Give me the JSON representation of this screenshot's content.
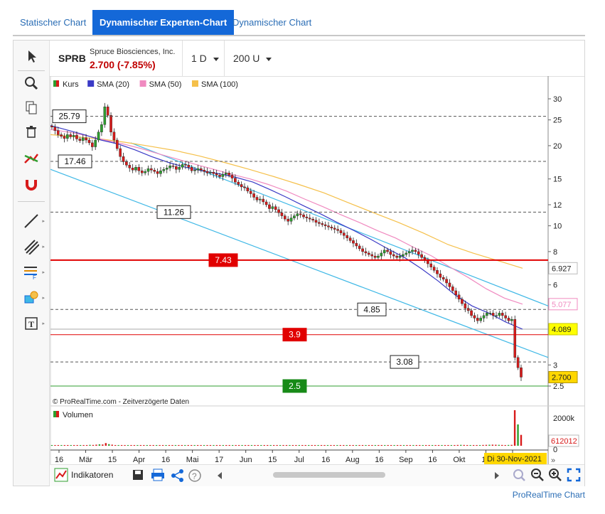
{
  "tabs": [
    "Statischer Chart",
    "Dynamischer Experten-Chart",
    "Dynamischer Chart"
  ],
  "active_tab": 1,
  "header": {
    "symbol": "SPRB",
    "company": "Spruce Biosciences, Inc.",
    "price": "2.700 (-7.85%)",
    "interval": "1 D",
    "units": "200 U"
  },
  "legend": [
    {
      "label": "Kurs",
      "color": "#2e9e2e"
    },
    {
      "label": "SMA (20)",
      "color": "#3b3bc6"
    },
    {
      "label": "SMA (50)",
      "color": "#f08ac0"
    },
    {
      "label": "SMA (100)",
      "color": "#f5c04a"
    }
  ],
  "copyright": "© ProRealTime.com",
  "delayed": "Zeitverzögerte Daten",
  "volume_label": "Volumen",
  "indicators_label": "Indikatoren",
  "brand": "ProRealTime Chart",
  "colors": {
    "accent": "#1468d8",
    "up": "#2e9e2e",
    "down": "#d81b1b",
    "channel": "#3fb8e6",
    "level": "#e10000"
  },
  "chart_data": {
    "type": "line",
    "scale": "log",
    "yticks": [
      "30",
      "25",
      "20",
      "15",
      "12",
      "10",
      "8",
      "6",
      "3",
      "2.5"
    ],
    "ytick_values": [
      30,
      25,
      20,
      15,
      12,
      10,
      8,
      6,
      3,
      2.5
    ],
    "xticks": [
      "16",
      "Mär",
      "15",
      "Apr",
      "16",
      "Mai",
      "17",
      "Jun",
      "15",
      "Jul",
      "16",
      "Aug",
      "16",
      "Sep",
      "16",
      "Okt",
      "15",
      "N"
    ],
    "x_cursor_label": "Di 30-Nov-2021",
    "price_series": [
      23.5,
      22.8,
      22.0,
      21.7,
      21.3,
      22.0,
      21.6,
      21.9,
      21.2,
      20.9,
      21.4,
      21.0,
      20.5,
      19.8,
      21.0,
      22.5,
      24.0,
      28.0,
      26.0,
      22.5,
      21.0,
      19.5,
      18.2,
      17.4,
      16.9,
      16.5,
      16.2,
      16.6,
      16.1,
      15.8,
      16.0,
      16.4,
      16.2,
      16.0,
      15.7,
      16.1,
      16.3,
      16.5,
      16.8,
      16.7,
      16.3,
      16.6,
      17.0,
      16.9,
      16.6,
      16.1,
      16.2,
      16.4,
      16.2,
      16.0,
      15.8,
      15.9,
      15.7,
      15.5,
      15.3,
      15.6,
      15.8,
      15.5,
      15.1,
      14.6,
      14.3,
      14.0,
      13.9,
      13.5,
      13.2,
      12.8,
      12.5,
      12.6,
      12.3,
      12.0,
      11.6,
      11.8,
      11.5,
      11.2,
      10.9,
      10.6,
      10.4,
      10.7,
      10.9,
      11.1,
      11.0,
      10.8,
      10.7,
      10.6,
      10.5,
      10.3,
      10.2,
      10.1,
      10.0,
      9.9,
      9.8,
      9.7,
      9.6,
      9.4,
      9.2,
      9.0,
      8.8,
      8.6,
      8.4,
      8.2,
      8.0,
      7.9,
      7.8,
      7.7,
      7.6,
      7.7,
      7.9,
      8.1,
      8.0,
      7.8,
      7.7,
      7.6,
      7.7,
      7.8,
      7.9,
      8.0,
      8.1,
      8.0,
      7.8,
      7.6,
      7.4,
      7.2,
      7.0,
      6.8,
      6.6,
      6.4,
      6.3,
      6.1,
      5.9,
      5.7,
      5.5,
      5.3,
      5.1,
      4.9,
      4.8,
      4.6,
      4.5,
      4.4,
      4.5,
      4.6,
      4.7,
      4.7,
      4.6,
      4.6,
      4.7,
      4.6,
      4.5,
      4.4,
      4.45,
      3.2,
      2.93,
      2.7
    ],
    "volume_k": [
      40,
      35,
      30,
      30,
      25,
      30,
      20,
      25,
      20,
      30,
      35,
      40,
      50,
      45,
      60,
      80,
      70,
      150,
      90,
      60,
      40,
      35,
      30,
      30,
      28,
      25,
      25,
      30,
      28,
      25,
      25,
      22,
      20,
      22,
      25,
      20,
      18,
      20,
      22,
      25,
      20,
      18,
      20,
      22,
      25,
      20,
      18,
      20,
      22,
      20,
      18,
      20,
      22,
      25,
      30,
      28,
      25,
      30,
      35,
      40,
      38,
      35,
      30,
      28,
      32,
      30,
      28,
      25,
      22,
      20,
      25,
      28,
      30,
      25,
      22,
      20,
      22,
      25,
      28,
      30,
      25,
      22,
      20,
      25,
      22,
      20,
      18,
      20,
      22,
      20,
      18,
      20,
      22,
      25,
      28,
      25,
      22,
      20,
      25,
      28,
      30,
      25,
      22,
      20,
      22,
      25,
      28,
      30,
      25,
      22,
      20,
      25,
      28,
      30,
      25,
      22,
      20,
      22,
      25,
      28,
      30,
      35,
      40,
      38,
      35,
      30,
      35,
      40,
      45,
      50,
      45,
      40,
      35,
      30,
      35,
      40,
      45,
      50,
      55,
      60,
      55,
      50,
      45,
      40,
      45,
      50,
      2000,
      1200,
      612
    ],
    "sma20": [
      23.8,
      22.9,
      22.0,
      21.0,
      20.3,
      19.3,
      18.2,
      17.3,
      16.6,
      16.1,
      15.7,
      15.2,
      14.6,
      13.7,
      12.8,
      11.9,
      11.1,
      10.3,
      9.6,
      8.9,
      8.2,
      7.6,
      6.9,
      6.2,
      5.5,
      5.0,
      4.7,
      4.35,
      4.09
    ],
    "sma50": [
      23.0,
      22.5,
      21.8,
      21.0,
      20.3,
      19.5,
      18.6,
      17.8,
      17.0,
      16.3,
      15.6,
      15.0,
      14.3,
      13.5,
      12.6,
      11.8,
      11.0,
      10.3,
      9.6,
      9.0,
      8.3,
      7.7,
      7.0,
      6.4,
      5.8,
      5.35,
      5.077
    ],
    "sma100": [
      22.0,
      21.6,
      21.2,
      20.6,
      19.9,
      19.2,
      18.3,
      17.3,
      16.3,
      15.3,
      14.3,
      13.3,
      12.2,
      11.2,
      10.3,
      9.4,
      8.5,
      7.9,
      7.4,
      6.927
    ],
    "price_labels": [
      "6.927",
      "5.077",
      "4.089",
      "2.700",
      "2000k",
      "612012",
      "0"
    ],
    "horizontal_lines": [
      {
        "label": "25.79",
        "value": 25.79,
        "style": "dashed"
      },
      {
        "label": "17.46",
        "value": 17.46,
        "style": "dashed"
      },
      {
        "label": "11.26",
        "value": 11.26,
        "style": "dashed"
      },
      {
        "label": "7.43",
        "value": 7.43,
        "style": "red"
      },
      {
        "label": "4.85",
        "value": 4.85,
        "style": "dashed"
      },
      {
        "label": "3.9",
        "value": 3.9,
        "style": "red"
      },
      {
        "label": "3.08",
        "value": 3.08,
        "style": "dashed"
      },
      {
        "label": "2.5",
        "value": 2.5,
        "style": "green"
      }
    ]
  }
}
